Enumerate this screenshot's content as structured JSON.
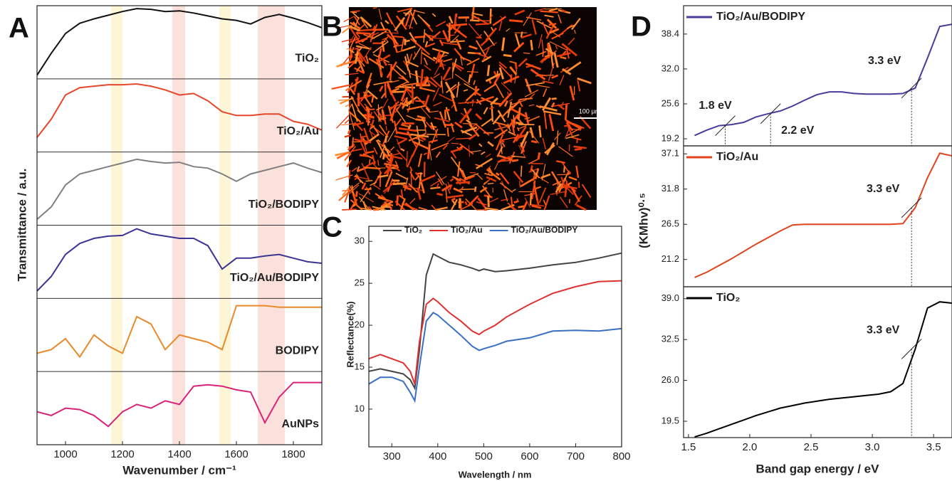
{
  "chart_data": [
    {
      "type": "line",
      "label": "A",
      "xlabel": "Wavenumber / cm⁻¹",
      "ylabel": "Transmittance / a.u.",
      "stacked_panels": true,
      "xlim": [
        900,
        1900
      ],
      "xticks": [
        1000,
        1200,
        1400,
        1600,
        1800
      ],
      "ylim": [
        0,
        1
      ],
      "bands": [
        {
          "x0": 1160,
          "x1": 1200,
          "color": "#fdf6d6"
        },
        {
          "x0": 1375,
          "x1": 1420,
          "color": "#fbe1dc"
        },
        {
          "x0": 1540,
          "x1": 1580,
          "color": "#fdf6d6"
        },
        {
          "x0": 1675,
          "x1": 1770,
          "color": "#fbe1dc"
        }
      ],
      "x": [
        900,
        950,
        1000,
        1050,
        1100,
        1150,
        1200,
        1250,
        1300,
        1350,
        1400,
        1450,
        1500,
        1550,
        1600,
        1650,
        1700,
        1750,
        1800,
        1850,
        1900
      ],
      "series": [
        {
          "name": "TiO₂",
          "color": "#111111",
          "values": [
            0.05,
            0.35,
            0.62,
            0.76,
            0.82,
            0.87,
            0.92,
            0.96,
            0.95,
            0.92,
            0.93,
            0.9,
            0.86,
            0.82,
            0.8,
            0.75,
            0.84,
            0.88,
            0.83,
            0.77,
            0.7
          ]
        },
        {
          "name": "TiO₂/Au",
          "color": "#e8462a",
          "values": [
            0.2,
            0.45,
            0.78,
            0.88,
            0.9,
            0.92,
            0.92,
            0.93,
            0.9,
            0.85,
            0.78,
            0.8,
            0.7,
            0.55,
            0.5,
            0.5,
            0.52,
            0.52,
            0.42,
            0.38,
            0.3
          ]
        },
        {
          "name": "TiO₂/BODIPY",
          "color": "#808080",
          "values": [
            0.08,
            0.25,
            0.55,
            0.7,
            0.75,
            0.8,
            0.85,
            0.9,
            0.87,
            0.85,
            0.86,
            0.8,
            0.78,
            0.7,
            0.6,
            0.7,
            0.75,
            0.8,
            0.85,
            0.78,
            0.72
          ]
        },
        {
          "name": "TiO₂/Au/BODIPY",
          "color": "#3b3494",
          "values": [
            0.1,
            0.3,
            0.6,
            0.75,
            0.82,
            0.85,
            0.86,
            0.95,
            0.88,
            0.85,
            0.82,
            0.82,
            0.72,
            0.4,
            0.55,
            0.55,
            0.58,
            0.6,
            0.55,
            0.5,
            0.48
          ]
        },
        {
          "name": "BODIPY",
          "color": "#e88a2a",
          "values": [
            0.25,
            0.3,
            0.45,
            0.2,
            0.5,
            0.35,
            0.25,
            0.75,
            0.65,
            0.3,
            0.5,
            0.45,
            0.4,
            0.3,
            0.9,
            0.9,
            0.9,
            0.88,
            0.88,
            0.88,
            0.88
          ]
        },
        {
          "name": "AuNPs",
          "color": "#d9237a",
          "values": [
            0.45,
            0.4,
            0.5,
            0.48,
            0.4,
            0.25,
            0.45,
            0.55,
            0.5,
            0.6,
            0.55,
            0.8,
            0.82,
            0.8,
            0.75,
            0.72,
            0.3,
            0.65,
            0.85,
            0.85,
            0.85
          ]
        }
      ]
    },
    {
      "type": "image",
      "label": "B",
      "scale_bar": "100 µm"
    },
    {
      "type": "line",
      "label": "C",
      "xlabel": "Wavelength / nm",
      "ylabel": "Reflectance(%)",
      "legend": "top",
      "xlim": [
        250,
        800
      ],
      "xticks": [
        300,
        400,
        500,
        600,
        700,
        800
      ],
      "ylim": [
        5.5,
        31.8
      ],
      "yticks": [
        10,
        15,
        20,
        25,
        30
      ],
      "x": [
        250,
        275,
        300,
        325,
        340,
        350,
        360,
        375,
        390,
        400,
        425,
        450,
        475,
        490,
        500,
        525,
        550,
        600,
        650,
        700,
        750,
        800
      ],
      "series": [
        {
          "name": "TiO₂",
          "color": "#444444",
          "values": [
            14.5,
            14.8,
            14.5,
            14.2,
            13.5,
            12.5,
            17,
            26,
            28.5,
            28.2,
            27.5,
            27.2,
            26.8,
            26.5,
            26.7,
            26.4,
            26.5,
            26.8,
            27.2,
            27.5,
            28,
            28.6
          ]
        },
        {
          "name": "TiO₂/Au",
          "color": "#e03030",
          "values": [
            16,
            16.5,
            16,
            15.5,
            14.5,
            13,
            18,
            22.5,
            23.2,
            22.8,
            21.5,
            20.5,
            19.3,
            18.9,
            19.3,
            20,
            21,
            22.5,
            23.8,
            24.6,
            25.2,
            25.3
          ]
        },
        {
          "name": "TiO₂/Au/BODIPY",
          "color": "#3a6fc4",
          "values": [
            13,
            13.8,
            13.8,
            13.3,
            12,
            11,
            15,
            20.5,
            21.5,
            21.2,
            20,
            18.8,
            17.5,
            17,
            17.2,
            17.6,
            18.1,
            18.5,
            19.3,
            19.4,
            19.3,
            19.6
          ]
        }
      ]
    },
    {
      "type": "line",
      "label": "D",
      "ylabel": "(KMhv)⁰·⁵",
      "legend": "upper left",
      "xlim": [
        1.46,
        3.65
      ],
      "ylim": [
        17.9,
        43.6
      ],
      "yticks": [
        19.2,
        25.6,
        {
          "value": 32,
          "label": "32.0"
        },
        38.4
      ],
      "annotations": [
        {
          "text": "1.8 eV",
          "x": 1.8
        },
        {
          "text": "2.2 eV",
          "x": 2.17
        },
        {
          "text": "3.3 eV",
          "x": 3.32
        }
      ],
      "x": [
        1.55,
        1.65,
        1.75,
        1.85,
        1.95,
        2.05,
        2.15,
        2.25,
        2.35,
        2.45,
        2.55,
        2.65,
        2.75,
        2.85,
        2.95,
        3.05,
        3.15,
        3.25,
        3.35,
        3.45,
        3.55,
        3.65
      ],
      "series": [
        {
          "name": "TiO₂/Au/BODIPY",
          "color": "#4b3a9a",
          "values": [
            19.8,
            20.8,
            21.6,
            21.8,
            22.2,
            23.2,
            23.8,
            24.3,
            25.2,
            26.3,
            27.3,
            27.8,
            27.8,
            27.5,
            27.4,
            27.4,
            27.4,
            27.5,
            28.5,
            34,
            39.8,
            40.2
          ]
        }
      ]
    },
    {
      "type": "line",
      "legend": "upper left",
      "xlim": [
        1.46,
        3.65
      ],
      "ylim": [
        17.1,
        38.3
      ],
      "yticks": [
        21.2,
        26.5,
        31.8,
        37.1
      ],
      "annotations": [
        {
          "text": "3.3 eV",
          "x": 3.32
        }
      ],
      "x": [
        1.55,
        1.65,
        1.75,
        1.85,
        1.95,
        2.05,
        2.15,
        2.25,
        2.35,
        2.45,
        2.55,
        2.65,
        2.75,
        2.85,
        2.95,
        3.05,
        3.15,
        3.25,
        3.35,
        3.45,
        3.55,
        3.65
      ],
      "series": [
        {
          "name": "TiO₂/Au",
          "color": "#e0441f",
          "values": [
            18.5,
            19.3,
            20.3,
            21.3,
            22.4,
            23.5,
            24.5,
            25.5,
            26.4,
            26.5,
            26.5,
            26.5,
            26.5,
            26.5,
            26.5,
            26.5,
            26.5,
            26.6,
            29,
            33.5,
            37.2,
            36.8
          ]
        }
      ]
    },
    {
      "type": "line",
      "legend": "upper left",
      "xlabel": "Band gap energy / eV",
      "xlim": [
        1.46,
        3.65
      ],
      "xticks": [
        1.5,
        {
          "value": 2,
          "label": "2.0"
        },
        2.5,
        {
          "value": 3,
          "label": "3.0"
        },
        3.5
      ],
      "ylim": [
        16.9,
        40.9
      ],
      "yticks": [
        19.5,
        {
          "value": 26,
          "label": "26.0"
        },
        32.5,
        {
          "value": 39,
          "label": "39.0"
        }
      ],
      "annotations": [
        {
          "text": "3.3 eV",
          "x": 3.32
        }
      ],
      "x": [
        1.55,
        1.65,
        1.75,
        1.85,
        1.95,
        2.05,
        2.15,
        2.25,
        2.35,
        2.45,
        2.55,
        2.65,
        2.75,
        2.85,
        2.95,
        3.05,
        3.15,
        3.25,
        3.35,
        3.45,
        3.55,
        3.65
      ],
      "series": [
        {
          "name": "TiO₂",
          "color": "#000000",
          "values": [
            17,
            17.6,
            18.3,
            19,
            19.7,
            20.4,
            21,
            21.6,
            22,
            22.4,
            22.7,
            23,
            23.2,
            23.4,
            23.6,
            23.8,
            24.2,
            25.5,
            31,
            37.5,
            38.5,
            38.3
          ]
        }
      ]
    }
  ]
}
